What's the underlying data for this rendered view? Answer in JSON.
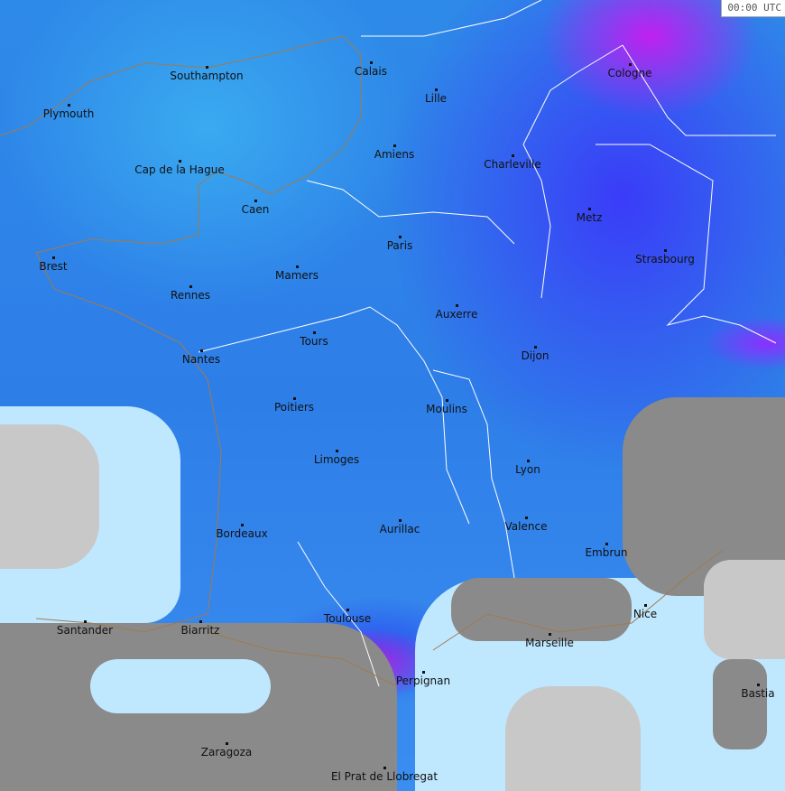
{
  "timestamp": "00:00 UTC",
  "colors": {
    "light_rain": "#4ab8f8",
    "moderate": "#2e7ee8",
    "heavy": "#3a3cf8",
    "very_heavy": "#c020f0",
    "no_data": "#8a8a8a",
    "cloud": "#c8c8c8"
  },
  "cities": [
    "Southampton",
    "Calais",
    "Lille",
    "Cologne",
    "Plymouth",
    "Amiens",
    "Charleville",
    "Cap de la Hague",
    "Caen",
    "Metz",
    "Paris",
    "Strasbourg",
    "Brest",
    "Mamers",
    "Rennes",
    "Auxerre",
    "Tours",
    "Dijon",
    "Nantes",
    "Poitiers",
    "Moulins",
    "Limoges",
    "Lyon",
    "Aurillac",
    "Valence",
    "Bordeaux",
    "Embrun",
    "Nice",
    "Toulouse",
    "Santander",
    "Biarritz",
    "Marseille",
    "Perpignan",
    "Bastia",
    "Zaragoza",
    "El Prat de Llobregat"
  ]
}
